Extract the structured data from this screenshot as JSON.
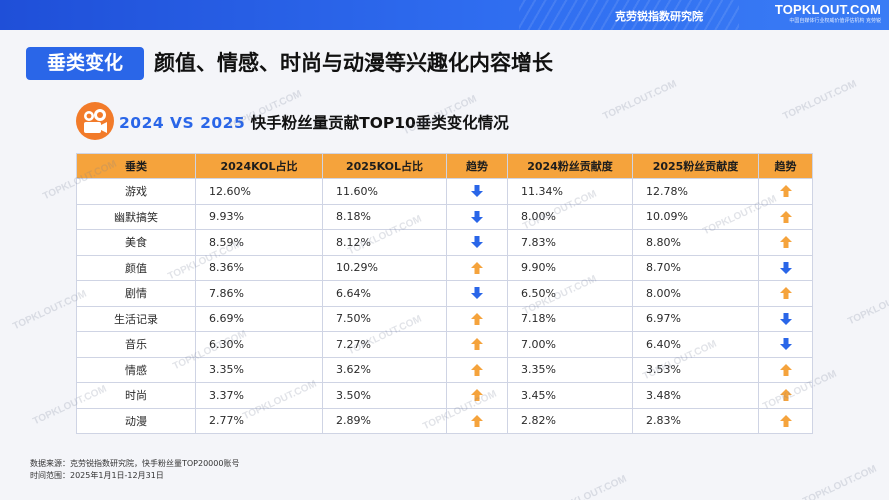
{
  "header": {
    "org_name": "克劳锐指数研究院",
    "logo_text": "TOPKLOUT.COM",
    "logo_sub": "中国自媒体行业权威价值评估机构 克劳锐"
  },
  "headline": {
    "tag": "垂类变化",
    "text": "颜值、情感、时尚与动漫等兴趣化内容增长"
  },
  "table_title": {
    "year_part": "2024 VS 2025",
    "rest": " 快手粉丝量贡献TOP10垂类变化情况"
  },
  "watermark": "TOPKLOUT.COM",
  "colors": {
    "accent_blue": "#2a66e8",
    "header_orange": "#f5a33c",
    "arrow_up": "#f5a33c",
    "arrow_down": "#2a66e8"
  },
  "chart_data": {
    "type": "table",
    "columns": [
      "垂类",
      "2024KOL占比",
      "2025KOL占比",
      "趋势",
      "2024粉丝贡献度",
      "2025粉丝贡献度",
      "趋势"
    ],
    "rows": [
      {
        "category": "游戏",
        "kol_2024": "12.60%",
        "kol_2025": "11.60%",
        "kol_trend": "down",
        "fans_2024": "11.34%",
        "fans_2025": "12.78%",
        "fans_trend": "up"
      },
      {
        "category": "幽默搞笑",
        "kol_2024": "9.93%",
        "kol_2025": "8.18%",
        "kol_trend": "down",
        "fans_2024": "8.00%",
        "fans_2025": "10.09%",
        "fans_trend": "up"
      },
      {
        "category": "美食",
        "kol_2024": "8.59%",
        "kol_2025": "8.12%",
        "kol_trend": "down",
        "fans_2024": "7.83%",
        "fans_2025": "8.80%",
        "fans_trend": "up"
      },
      {
        "category": "颜值",
        "kol_2024": "8.36%",
        "kol_2025": "10.29%",
        "kol_trend": "up",
        "fans_2024": "9.90%",
        "fans_2025": "8.70%",
        "fans_trend": "down"
      },
      {
        "category": "剧情",
        "kol_2024": "7.86%",
        "kol_2025": "6.64%",
        "kol_trend": "down",
        "fans_2024": "6.50%",
        "fans_2025": "8.00%",
        "fans_trend": "up"
      },
      {
        "category": "生活记录",
        "kol_2024": "6.69%",
        "kol_2025": "7.50%",
        "kol_trend": "up",
        "fans_2024": "7.18%",
        "fans_2025": "6.97%",
        "fans_trend": "down"
      },
      {
        "category": "音乐",
        "kol_2024": "6.30%",
        "kol_2025": "7.27%",
        "kol_trend": "up",
        "fans_2024": "7.00%",
        "fans_2025": "6.40%",
        "fans_trend": "down"
      },
      {
        "category": "情感",
        "kol_2024": "3.35%",
        "kol_2025": "3.62%",
        "kol_trend": "up",
        "fans_2024": "3.35%",
        "fans_2025": "3.53%",
        "fans_trend": "up"
      },
      {
        "category": "时尚",
        "kol_2024": "3.37%",
        "kol_2025": "3.50%",
        "kol_trend": "up",
        "fans_2024": "3.45%",
        "fans_2025": "3.48%",
        "fans_trend": "up"
      },
      {
        "category": "动漫",
        "kol_2024": "2.77%",
        "kol_2025": "2.89%",
        "kol_trend": "up",
        "fans_2024": "2.82%",
        "fans_2025": "2.83%",
        "fans_trend": "up"
      }
    ]
  },
  "footer": {
    "source_line": "数据来源：克劳锐指数研究院，快手粉丝量TOP20000账号",
    "period_line": "时间范围：2025年1月1日-12月31日"
  }
}
